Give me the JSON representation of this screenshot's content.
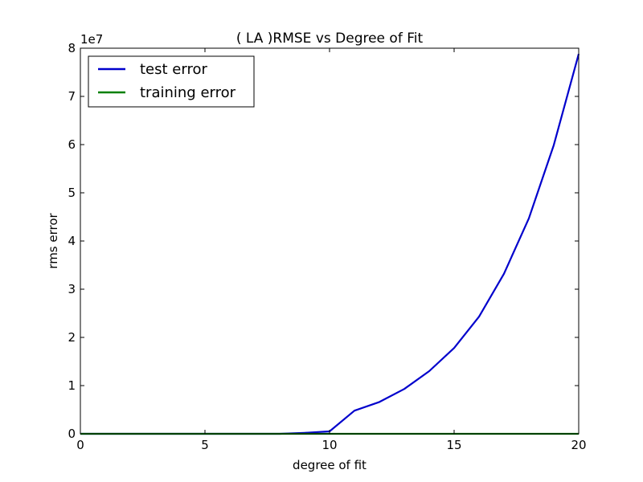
{
  "chart_data": {
    "type": "line",
    "title": "(  LA  )RMSE vs Degree of Fit",
    "xlabel": "degree of fit",
    "ylabel": "rms error",
    "y_offset_label": "1e7",
    "xlim": [
      0,
      20
    ],
    "ylim": [
      0,
      8
    ],
    "xticks": [
      "0",
      "5",
      "10",
      "15",
      "20"
    ],
    "yticks": [
      "0",
      "1",
      "2",
      "3",
      "4",
      "5",
      "6",
      "7",
      "8"
    ],
    "grid": false,
    "legend_placement": "top-left",
    "series": [
      {
        "name": "test error",
        "color": "#0000cc",
        "x": [
          0,
          1,
          2,
          3,
          4,
          5,
          6,
          7,
          8,
          9,
          10,
          11,
          12,
          13,
          14,
          15,
          16,
          17,
          18,
          19,
          20
        ],
        "values": [
          0,
          0,
          0,
          0,
          0,
          0,
          0,
          0,
          0,
          0.02,
          0.05,
          0.48,
          0.66,
          0.93,
          1.3,
          1.78,
          2.43,
          3.32,
          4.47,
          5.99,
          7.88
        ]
      },
      {
        "name": "training error",
        "color": "#008000",
        "x": [
          0,
          1,
          2,
          3,
          4,
          5,
          6,
          7,
          8,
          9,
          10,
          11,
          12,
          13,
          14,
          15,
          16,
          17,
          18,
          19,
          20
        ],
        "values": [
          0,
          0,
          0,
          0,
          0,
          0,
          0,
          0,
          0,
          0,
          0,
          0,
          0,
          0,
          0,
          0,
          0,
          0,
          0,
          0,
          0
        ]
      }
    ]
  }
}
